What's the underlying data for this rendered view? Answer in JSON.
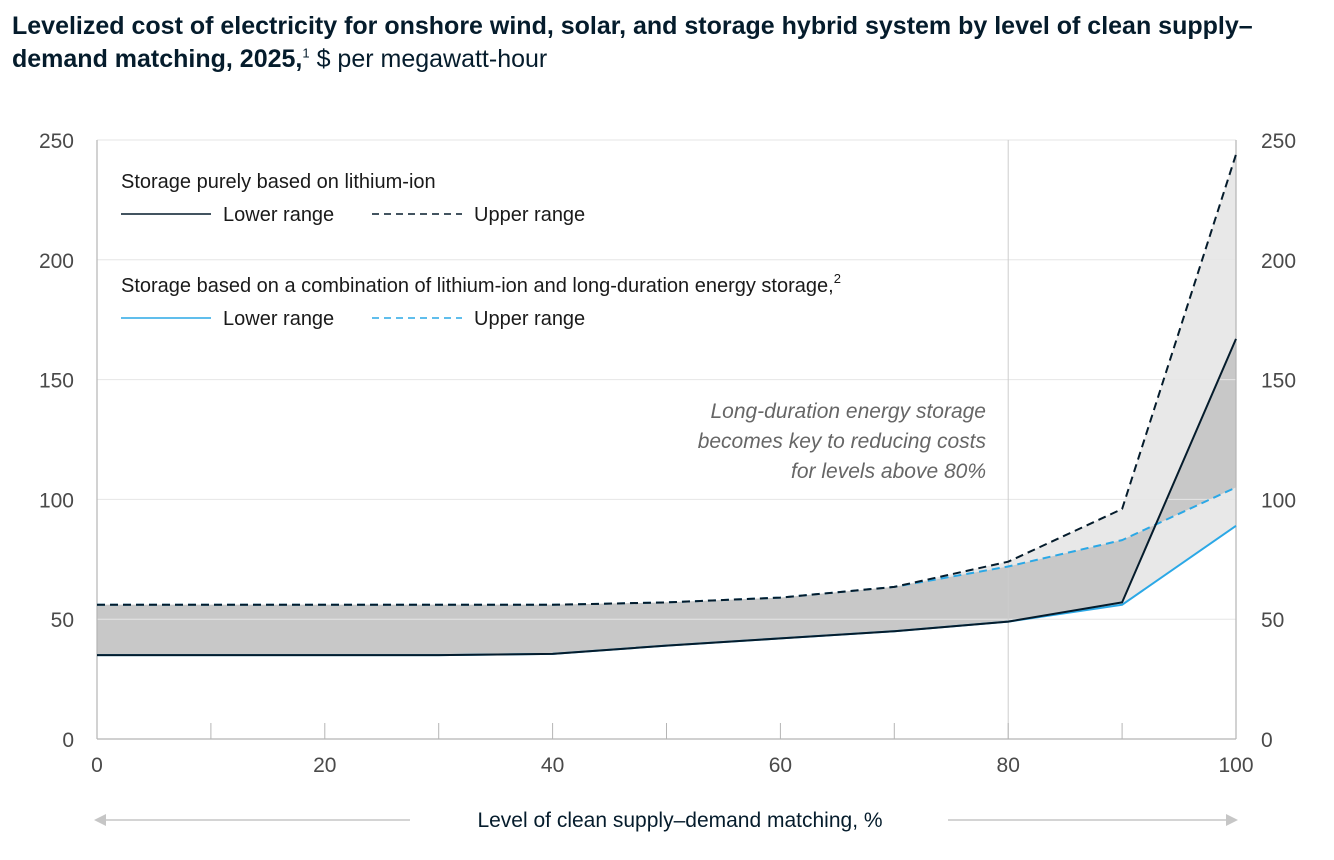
{
  "title": {
    "bold": "Levelized cost of electricity for onshore wind, solar, and storage hybrid system by level of clean supply–demand matching, 2025,",
    "footnote": "1",
    "unit": "$ per megawatt-hour"
  },
  "chart_data": {
    "type": "line",
    "xlabel": "Level of clean supply–demand matching, %",
    "ylabel": "",
    "xlim": [
      0,
      100
    ],
    "ylim": [
      0,
      250
    ],
    "x_ticks": [
      0,
      20,
      40,
      60,
      80,
      100
    ],
    "x_minor_ticks": [
      10,
      30,
      50,
      70,
      90
    ],
    "y_ticks": [
      0,
      50,
      100,
      150,
      200,
      250
    ],
    "y_axis_both_sides": true,
    "gridlines": "horizontal",
    "reference_line_x": 80,
    "legend": {
      "placement": "top-left",
      "groups": [
        {
          "heading": "Storage purely based on lithium-ion",
          "footnote": "",
          "items": [
            {
              "label": "Lower range",
              "color": "#051c2c",
              "dash": "solid"
            },
            {
              "label": "Upper range",
              "color": "#051c2c",
              "dash": "dashed"
            }
          ]
        },
        {
          "heading": "Storage based on a combination of lithium-ion and long-duration energy storage,",
          "footnote": "2",
          "items": [
            {
              "label": "Lower range",
              "color": "#2ba8e6",
              "dash": "solid"
            },
            {
              "label": "Upper range",
              "color": "#2ba8e6",
              "dash": "dashed"
            }
          ]
        }
      ]
    },
    "annotation": {
      "lines": [
        "Long-duration energy storage",
        "becomes key to reducing costs",
        "for levels above 80%"
      ]
    },
    "x": [
      0,
      10,
      20,
      30,
      40,
      50,
      60,
      70,
      80,
      90,
      100
    ],
    "series": [
      {
        "group": "lithium-ion",
        "range": "lower",
        "color": "#051c2c",
        "dash": "solid",
        "values": [
          35,
          35,
          35,
          35,
          35.5,
          39,
          42,
          45,
          49,
          57,
          167
        ]
      },
      {
        "group": "lithium-ion",
        "range": "upper",
        "color": "#051c2c",
        "dash": "dashed",
        "values": [
          56,
          56,
          56,
          56,
          56,
          57,
          59,
          63.5,
          74,
          96,
          244
        ]
      },
      {
        "group": "lithium-ion + LDES",
        "range": "lower",
        "color": "#2ba8e6",
        "dash": "solid",
        "values": [
          35,
          35,
          35,
          35,
          35.5,
          39,
          42,
          45,
          49,
          56,
          89
        ]
      },
      {
        "group": "lithium-ion + LDES",
        "range": "upper",
        "color": "#2ba8e6",
        "dash": "dashed",
        "values": [
          56,
          56,
          56,
          56,
          56,
          57,
          59,
          63.5,
          72,
          83,
          105
        ]
      }
    ],
    "colors": {
      "band_common": "#c8c8c8",
      "band_extra": "#e8e8e8",
      "grid": "#e6e6e6",
      "axis": "#b5b5b5",
      "ink": "#051c2c",
      "accent": "#2ba8e6"
    }
  }
}
